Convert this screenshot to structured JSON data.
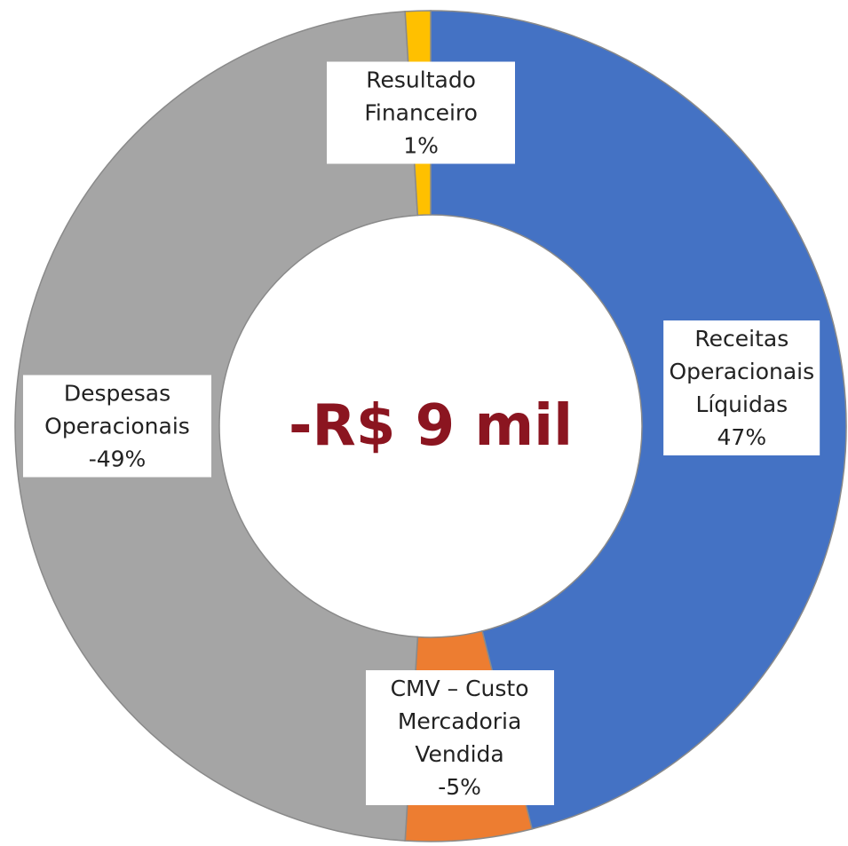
{
  "chart_data": {
    "type": "donut",
    "center_label": "-R$ 9 mil",
    "categories": [
      "Receitas Operacionais Líquidas",
      "CMV – Custo Mercadoria Vendida",
      "Despesas Operacionais",
      "Resultado Financeiro"
    ],
    "values": [
      47,
      -5,
      -49,
      1
    ],
    "value_labels": [
      "47%",
      "-5%",
      "-49%",
      "1%"
    ],
    "colors": [
      "#4472c4",
      "#ed7d31",
      "#a5a5a5",
      "#ffc000"
    ]
  }
}
